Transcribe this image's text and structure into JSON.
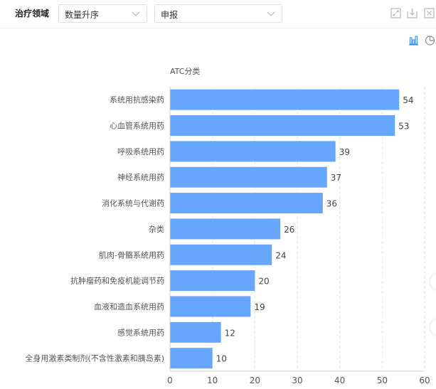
{
  "toolbar": {
    "title": "治疗领域",
    "sort_select": {
      "value": "数量升序"
    },
    "type_select": {
      "value": "申报"
    },
    "icons": [
      "fullscreen-icon",
      "download-icon",
      "close-icon"
    ]
  },
  "chart_toggle": {
    "icons": [
      "bar-chart-icon",
      "pie-chart-icon"
    ],
    "accent": "#3a8ee6"
  },
  "chart_data": {
    "type": "bar",
    "orientation": "horizontal",
    "title": "ATC分类",
    "categories": [
      "系统用抗感染药",
      "心血管系统用药",
      "呼吸系统用药",
      "神经系统用药",
      "消化系统与代谢药",
      "杂类",
      "肌肉-骨骼系统用药",
      "抗肿瘤药和免疫机能调节药",
      "血液和造血系统用药",
      "感觉系统用药",
      "全身用激素类制剂(不含性激素和胰岛素)"
    ],
    "values": [
      54,
      53,
      39,
      37,
      36,
      26,
      24,
      20,
      19,
      12,
      10
    ],
    "xlim": [
      0,
      60
    ],
    "xticks": [
      0,
      10,
      20,
      30,
      40,
      50,
      60
    ],
    "bar_color": "#66a6ff",
    "grid": true,
    "data_labels": true
  }
}
